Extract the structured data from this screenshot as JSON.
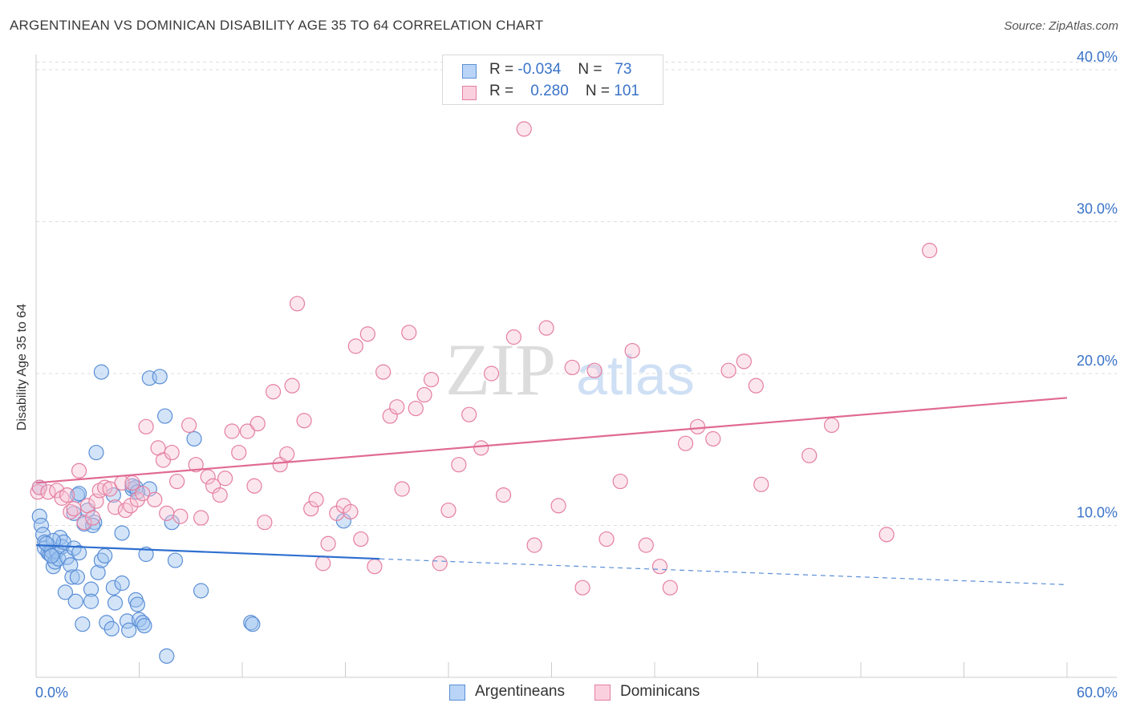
{
  "title": "ARGENTINEAN VS DOMINICAN DISABILITY AGE 35 TO 64 CORRELATION CHART",
  "source": "Source: ZipAtlas.com",
  "watermark": {
    "zip": "ZIP",
    "atlas": "atlas"
  },
  "legend": {
    "r_label": "R =",
    "n_label": "N =",
    "rows": [
      {
        "r": "-0.034",
        "n": "73",
        "color": "#9ec3f0",
        "border": "#5b8fd6"
      },
      {
        "r": "0.280",
        "n": "101",
        "color": "#f8c0d2",
        "border": "#e47fa1"
      }
    ]
  },
  "bottom_legend": [
    {
      "label": "Argentineans",
      "color": "#b9d4f6",
      "border": "#5b8fd6"
    },
    {
      "label": "Dominicans",
      "color": "#fbd0de",
      "border": "#e47fa1"
    }
  ],
  "chart_data": {
    "type": "scatter",
    "title": "ARGENTINEAN VS DOMINICAN DISABILITY AGE 35 TO 64 CORRELATION CHART",
    "xlabel": "",
    "ylabel": "Disability Age 35 to 64",
    "xlim": [
      0,
      60
    ],
    "ylim": [
      0,
      40.5
    ],
    "x_tick_labels": [
      "0.0%",
      "60.0%"
    ],
    "y_ticks": [
      10,
      20,
      30,
      40
    ],
    "y_tick_labels": [
      "10.0%",
      "20.0%",
      "30.0%",
      "40.0%"
    ],
    "grid": "horizontal dashed",
    "legend_position": "top-center",
    "series": [
      {
        "name": "Argentineans",
        "color": "#5b8fd6",
        "fill": "rgba(158,195,240,0.45)",
        "trend": {
          "x0": 0,
          "y0": 8.7,
          "x1": 20,
          "y1": 7.8,
          "dash_to_x": 60,
          "dash_y": 6.1
        },
        "points": [
          [
            0.2,
            12.5
          ],
          [
            0.2,
            10.6
          ],
          [
            0.3,
            10.0
          ],
          [
            0.4,
            9.4
          ],
          [
            0.5,
            8.9
          ],
          [
            0.5,
            8.5
          ],
          [
            0.7,
            8.2
          ],
          [
            0.8,
            8.1
          ],
          [
            0.9,
            8.3
          ],
          [
            1.0,
            7.3
          ],
          [
            1.1,
            7.6
          ],
          [
            1.2,
            8.3
          ],
          [
            1.3,
            7.8
          ],
          [
            1.4,
            9.2
          ],
          [
            1.5,
            8.6
          ],
          [
            1.6,
            8.9
          ],
          [
            1.7,
            5.6
          ],
          [
            1.8,
            7.9
          ],
          [
            2.0,
            7.4
          ],
          [
            2.1,
            6.6
          ],
          [
            2.2,
            8.5
          ],
          [
            2.3,
            5.0
          ],
          [
            2.5,
            8.2
          ],
          [
            2.4,
            6.6
          ],
          [
            2.2,
            10.8
          ],
          [
            2.4,
            12.0
          ],
          [
            2.7,
            3.5
          ],
          [
            2.8,
            10.1
          ],
          [
            3.0,
            11.0
          ],
          [
            3.2,
            5.8
          ],
          [
            3.2,
            5.0
          ],
          [
            3.4,
            10.2
          ],
          [
            3.5,
            14.8
          ],
          [
            3.8,
            20.1
          ],
          [
            3.6,
            6.9
          ],
          [
            3.8,
            7.7
          ],
          [
            4.0,
            8.0
          ],
          [
            4.1,
            3.6
          ],
          [
            4.4,
            3.2
          ],
          [
            4.5,
            5.9
          ],
          [
            4.6,
            4.9
          ],
          [
            5.0,
            9.5
          ],
          [
            5.0,
            6.2
          ],
          [
            5.3,
            3.7
          ],
          [
            5.4,
            3.1
          ],
          [
            5.8,
            5.1
          ],
          [
            5.9,
            4.8
          ],
          [
            6.0,
            3.8
          ],
          [
            6.2,
            3.6
          ],
          [
            6.3,
            3.4
          ],
          [
            6.4,
            8.1
          ],
          [
            6.6,
            12.4
          ],
          [
            5.6,
            12.4
          ],
          [
            5.8,
            12.5
          ],
          [
            5.6,
            12.6
          ],
          [
            6.6,
            19.7
          ],
          [
            7.2,
            19.8
          ],
          [
            7.5,
            17.2
          ],
          [
            7.6,
            1.4
          ],
          [
            7.9,
            10.2
          ],
          [
            8.1,
            7.7
          ],
          [
            9.2,
            15.7
          ],
          [
            9.6,
            5.7
          ],
          [
            12.5,
            3.6
          ],
          [
            12.6,
            3.5
          ],
          [
            17.9,
            10.3
          ],
          [
            2.5,
            12.1
          ],
          [
            1.0,
            9.0
          ],
          [
            0.6,
            8.8
          ],
          [
            4.5,
            12.0
          ],
          [
            3.3,
            10.0
          ],
          [
            5.9,
            12.2
          ],
          [
            0.9,
            8.0
          ]
        ]
      },
      {
        "name": "Dominicans",
        "color": "#e47fa1",
        "fill": "rgba(248,192,210,0.40)",
        "trend": {
          "x0": 0,
          "y0": 12.8,
          "x1": 60,
          "y1": 18.4
        },
        "points": [
          [
            0.1,
            12.2
          ],
          [
            0.2,
            12.5
          ],
          [
            0.7,
            12.2
          ],
          [
            1.2,
            12.3
          ],
          [
            1.5,
            11.8
          ],
          [
            1.8,
            12.0
          ],
          [
            2.0,
            10.9
          ],
          [
            2.2,
            11.1
          ],
          [
            2.5,
            13.6
          ],
          [
            2.8,
            10.2
          ],
          [
            3.0,
            11.3
          ],
          [
            3.3,
            10.5
          ],
          [
            3.5,
            11.6
          ],
          [
            3.7,
            12.3
          ],
          [
            4.0,
            12.5
          ],
          [
            4.3,
            12.4
          ],
          [
            4.6,
            11.2
          ],
          [
            5.0,
            12.8
          ],
          [
            5.2,
            11.0
          ],
          [
            5.5,
            11.3
          ],
          [
            5.6,
            12.8
          ],
          [
            5.9,
            11.7
          ],
          [
            6.2,
            12.1
          ],
          [
            6.4,
            16.5
          ],
          [
            6.9,
            11.7
          ],
          [
            7.1,
            15.1
          ],
          [
            7.4,
            14.3
          ],
          [
            7.6,
            10.8
          ],
          [
            7.9,
            14.8
          ],
          [
            8.2,
            12.9
          ],
          [
            8.4,
            10.6
          ],
          [
            8.9,
            16.6
          ],
          [
            9.3,
            14.0
          ],
          [
            9.6,
            10.5
          ],
          [
            10.0,
            13.2
          ],
          [
            10.3,
            12.6
          ],
          [
            10.7,
            12.0
          ],
          [
            11.0,
            13.1
          ],
          [
            11.4,
            16.2
          ],
          [
            11.8,
            14.8
          ],
          [
            12.3,
            16.2
          ],
          [
            12.7,
            12.6
          ],
          [
            12.9,
            16.7
          ],
          [
            13.3,
            10.2
          ],
          [
            13.8,
            18.8
          ],
          [
            14.2,
            14.0
          ],
          [
            14.6,
            14.7
          ],
          [
            14.9,
            19.2
          ],
          [
            15.2,
            24.6
          ],
          [
            15.6,
            16.9
          ],
          [
            16.0,
            11.1
          ],
          [
            16.3,
            11.7
          ],
          [
            16.7,
            7.5
          ],
          [
            17.0,
            8.8
          ],
          [
            17.5,
            10.8
          ],
          [
            17.9,
            11.3
          ],
          [
            18.3,
            10.9
          ],
          [
            18.6,
            21.8
          ],
          [
            18.9,
            9.1
          ],
          [
            19.3,
            22.6
          ],
          [
            19.7,
            7.3
          ],
          [
            20.2,
            20.1
          ],
          [
            20.6,
            17.2
          ],
          [
            21.0,
            17.8
          ],
          [
            21.3,
            12.4
          ],
          [
            21.7,
            22.7
          ],
          [
            22.1,
            17.7
          ],
          [
            22.6,
            18.6
          ],
          [
            23.0,
            19.6
          ],
          [
            23.5,
            7.5
          ],
          [
            24.0,
            11.0
          ],
          [
            24.6,
            14.0
          ],
          [
            25.2,
            17.3
          ],
          [
            25.9,
            15.1
          ],
          [
            26.5,
            20.0
          ],
          [
            27.2,
            12.0
          ],
          [
            27.8,
            22.4
          ],
          [
            28.4,
            36.1
          ],
          [
            29.0,
            8.7
          ],
          [
            29.7,
            23.0
          ],
          [
            30.4,
            11.3
          ],
          [
            31.2,
            20.4
          ],
          [
            31.8,
            5.9
          ],
          [
            32.5,
            20.2
          ],
          [
            33.2,
            9.1
          ],
          [
            34.0,
            12.9
          ],
          [
            34.7,
            21.5
          ],
          [
            35.5,
            8.7
          ],
          [
            36.3,
            7.3
          ],
          [
            36.9,
            5.9
          ],
          [
            37.8,
            15.4
          ],
          [
            38.5,
            16.5
          ],
          [
            39.4,
            15.7
          ],
          [
            40.3,
            20.2
          ],
          [
            41.2,
            20.8
          ],
          [
            41.9,
            19.2
          ],
          [
            42.2,
            12.7
          ],
          [
            45.0,
            14.6
          ],
          [
            46.3,
            16.6
          ],
          [
            49.5,
            9.4
          ],
          [
            52.0,
            28.1
          ]
        ]
      }
    ],
    "extra_points_note": ""
  }
}
